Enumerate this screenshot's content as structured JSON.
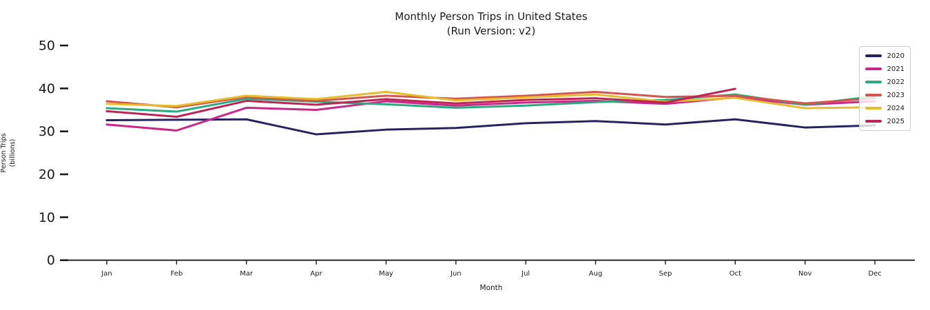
{
  "title": {
    "line1": "Monthly Person Trips in United States",
    "line2": "(Run Version: v2)"
  },
  "chart_data": {
    "type": "line",
    "x": [
      "Jan",
      "Feb",
      "Mar",
      "Apr",
      "May",
      "Jun",
      "Jul",
      "Aug",
      "Sep",
      "Oct",
      "Nov",
      "Dec"
    ],
    "xlabel": "Month",
    "ylabel_line1": "Person Trips",
    "ylabel_line2": "(billions)",
    "ylim": [
      0,
      50
    ],
    "yticks": [
      0,
      10,
      20,
      30,
      40,
      50
    ],
    "grid": false,
    "legend_position": "upper right",
    "axis_color": "#1a1a1a",
    "series": [
      {
        "name": "2020",
        "color": "#252361",
        "values": [
          32.6,
          32.7,
          32.8,
          29.3,
          30.4,
          30.8,
          31.9,
          32.4,
          31.6,
          32.8,
          30.9,
          31.4
        ]
      },
      {
        "name": "2021",
        "color": "#c9288b",
        "values": [
          31.6,
          30.2,
          35.5,
          35.0,
          37.0,
          36.0,
          36.7,
          37.1,
          36.4,
          37.9,
          36.2,
          37.0
        ]
      },
      {
        "name": "2022",
        "color": "#2aab7f",
        "values": [
          35.4,
          34.6,
          37.6,
          36.9,
          36.3,
          35.5,
          36.0,
          36.8,
          37.3,
          38.6,
          36.2,
          38.2
        ]
      },
      {
        "name": "2023",
        "color": "#d4544e",
        "values": [
          37.0,
          35.6,
          38.0,
          37.1,
          38.3,
          37.6,
          38.3,
          39.2,
          38.0,
          38.3,
          36.5,
          37.7
        ]
      },
      {
        "name": "2024",
        "color": "#e7bc2c",
        "values": [
          36.4,
          35.9,
          38.3,
          37.5,
          39.2,
          37.2,
          37.9,
          38.6,
          36.9,
          37.8,
          35.4,
          35.6
        ]
      },
      {
        "name": "2025",
        "color": "#bd2455",
        "values": [
          34.7,
          33.4,
          37.1,
          36.2,
          37.5,
          36.5,
          37.3,
          37.7,
          36.7,
          39.9,
          null,
          null
        ]
      }
    ]
  }
}
